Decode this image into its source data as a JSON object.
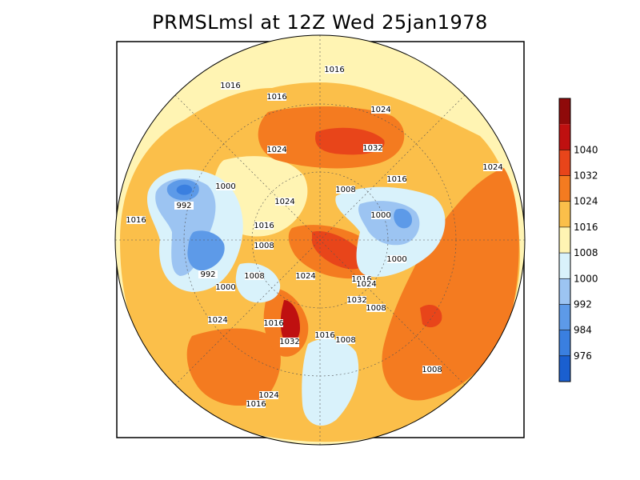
{
  "title": "PRMSLmsl at 12Z Wed 25jan1978",
  "colors": {
    "bands": [
      "#1a5fd0",
      "#3a7fe0",
      "#5d9ae8",
      "#9cc4f2",
      "#d9f2fb",
      "#fff4b3",
      "#fbbf4a",
      "#f47b20",
      "#e8451a",
      "#bf1010",
      "#8f0a0a"
    ],
    "frame": "#000000",
    "contour": "#222222"
  },
  "colorbar": {
    "labels": [
      "976",
      "984",
      "992",
      "1000",
      "1008",
      "1016",
      "1024",
      "1032",
      "1040"
    ]
  },
  "contour_labels": [
    "1016",
    "1016",
    "1016",
    "1024",
    "1024",
    "1032",
    "1024",
    "1000",
    "992",
    "1024",
    "1016",
    "1008",
    "1016",
    "1000",
    "1016",
    "1008",
    "1008",
    "992",
    "1000",
    "1008",
    "1024",
    "1032",
    "1024",
    "1016",
    "1000",
    "1008",
    "1024",
    "1016",
    "1032",
    "1016",
    "1008",
    "1024",
    "1024",
    "1016"
  ]
}
